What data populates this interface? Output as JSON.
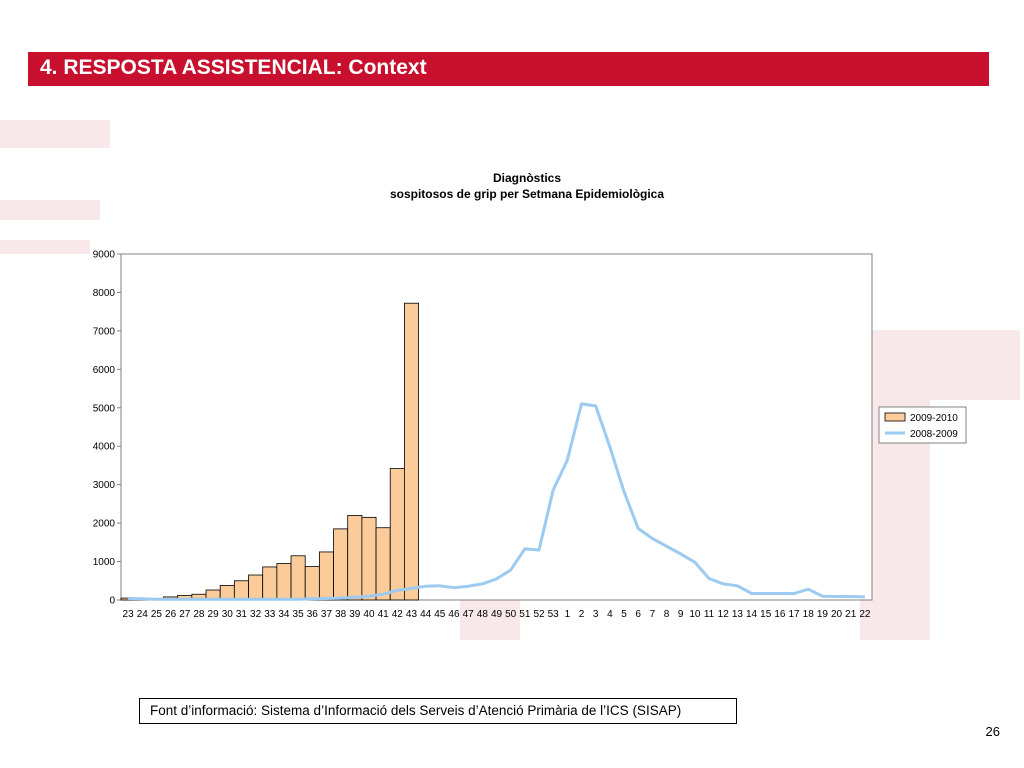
{
  "header": {
    "title": "4. RESPOSTA ASSISTENCIAL: Context"
  },
  "source": {
    "text": "Font d’informació: Sistema d’Informació dels Serveis d’Atenció Primària de l’ICS (SISAP)"
  },
  "page_number": "26",
  "colors": {
    "header_bg": "#c8102e",
    "bar_fill": "#fbcb9a",
    "line": "#9ccaf0",
    "watermark": "#f3d6d9"
  },
  "chart_data": {
    "type": "bar",
    "title_line1": "Diagnòstics",
    "title_line2": "sospitosos de grip per Setmana Epidemiològica",
    "xlabel": "",
    "ylabel": "",
    "ylim": [
      0,
      9000
    ],
    "yticks": [
      0,
      1000,
      2000,
      3000,
      4000,
      5000,
      6000,
      7000,
      8000,
      9000
    ],
    "legend_position": "right",
    "grid": false,
    "categories": [
      "23",
      "24",
      "25",
      "26",
      "27",
      "28",
      "29",
      "30",
      "31",
      "32",
      "33",
      "34",
      "35",
      "36",
      "37",
      "38",
      "39",
      "40",
      "41",
      "42",
      "43",
      "44",
      "45",
      "46",
      "47",
      "48",
      "49",
      "50",
      "51",
      "52",
      "53",
      "1",
      "2",
      "3",
      "4",
      "5",
      "6",
      "7",
      "8",
      "9",
      "10",
      "11",
      "12",
      "13",
      "14",
      "15",
      "16",
      "17",
      "18",
      "19",
      "20",
      "21",
      "22"
    ],
    "series": [
      {
        "name": "2009-2010",
        "kind": "bar",
        "values": [
          50,
          50,
          20,
          80,
          120,
          150,
          260,
          380,
          500,
          650,
          860,
          950,
          1150,
          870,
          1250,
          1850,
          2200,
          2150,
          1880,
          3420,
          7720,
          null,
          null,
          null,
          null,
          null,
          null,
          null,
          null,
          null,
          null,
          null,
          null,
          null,
          null,
          null,
          null,
          null,
          null,
          null,
          null,
          null,
          null,
          null,
          null,
          null,
          null,
          null,
          null,
          null,
          null,
          null,
          null
        ]
      },
      {
        "name": "2008-2009",
        "kind": "line",
        "values": [
          40,
          30,
          20,
          20,
          20,
          20,
          20,
          20,
          20,
          20,
          20,
          20,
          20,
          30,
          40,
          50,
          70,
          100,
          150,
          250,
          300,
          360,
          370,
          320,
          360,
          420,
          550,
          780,
          1330,
          1300,
          2860,
          3640,
          5100,
          5050,
          3980,
          2820,
          1860,
          1600,
          1400,
          1200,
          980,
          560,
          420,
          370,
          170,
          170,
          170,
          170,
          280,
          100,
          90,
          90,
          80
        ]
      }
    ]
  }
}
